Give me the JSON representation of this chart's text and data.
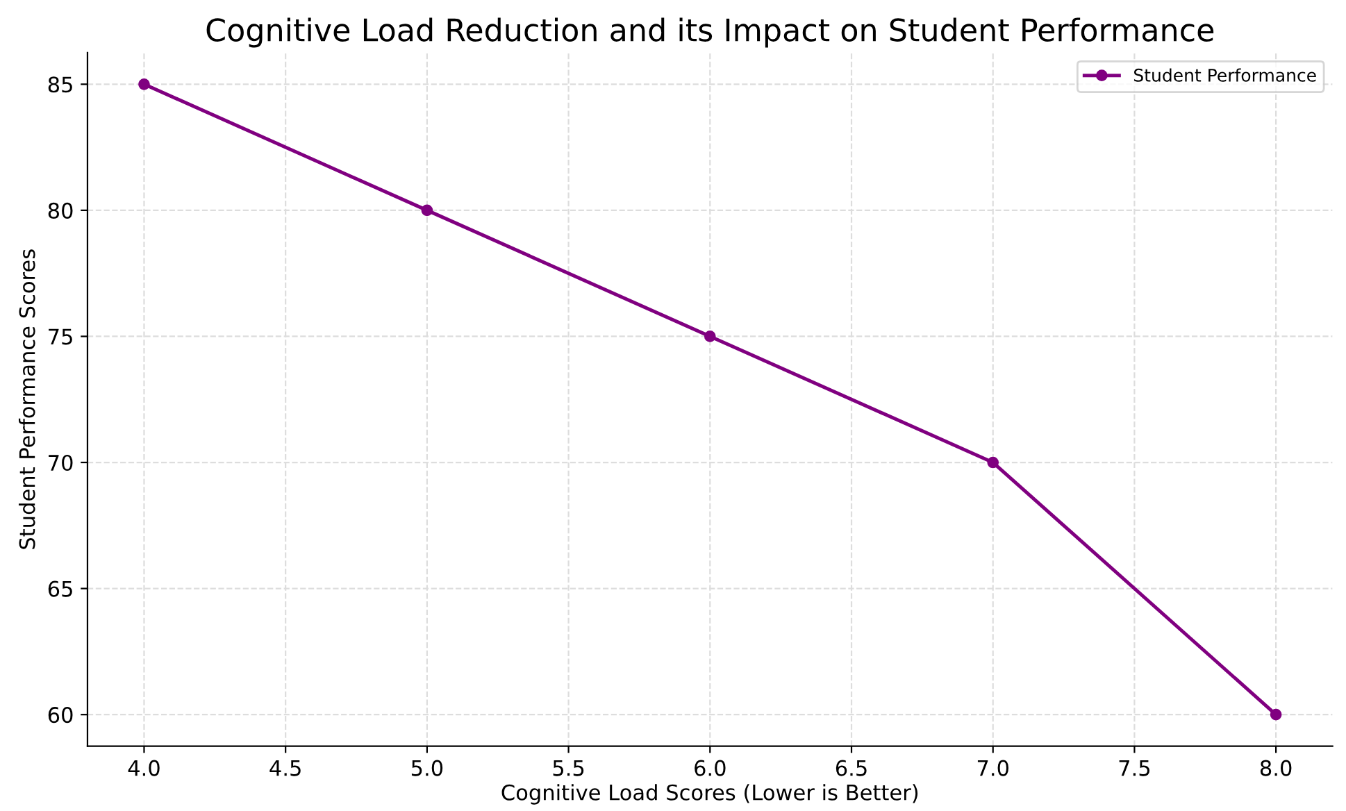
{
  "chart_data": {
    "type": "line",
    "title": "Cognitive Load Reduction and its Impact on Student Performance",
    "xlabel": "Cognitive Load Scores (Lower is Better)",
    "ylabel": "Student Performance Scores",
    "x": [
      4.0,
      5.0,
      6.0,
      7.0,
      8.0
    ],
    "series": [
      {
        "name": "Student Performance",
        "color": "#800080",
        "values": [
          85,
          80,
          75,
          70,
          60
        ]
      }
    ],
    "xlim": [
      3.8,
      8.2
    ],
    "xticks": [
      {
        "value": 4.0,
        "label": "4.0"
      },
      {
        "value": 4.5,
        "label": "4.5"
      },
      {
        "value": 5.0,
        "label": "5.0"
      },
      {
        "value": 5.5,
        "label": "5.5"
      },
      {
        "value": 6.0,
        "label": "6.0"
      },
      {
        "value": 6.5,
        "label": "6.5"
      },
      {
        "value": 7.0,
        "label": "7.0"
      },
      {
        "value": 7.5,
        "label": "7.5"
      },
      {
        "value": 8.0,
        "label": "8.0"
      }
    ],
    "ylim": [
      58.75,
      86.25
    ],
    "yticks": [
      60,
      65,
      70,
      75,
      80,
      85
    ],
    "grid": true,
    "legend": "top right",
    "marker": "circle",
    "line_style": "solid"
  }
}
